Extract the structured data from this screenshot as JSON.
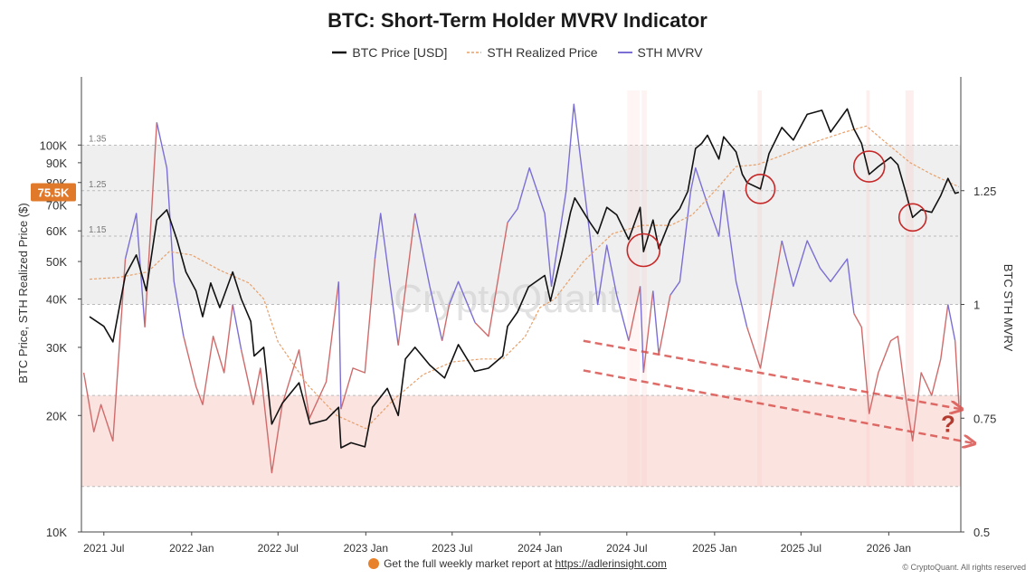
{
  "colors": {
    "btc_price": "#111111",
    "sth_realized": "#e8a06a",
    "mvrv_above": "#7b6fd6",
    "mvrv_below": "#cf6b6b",
    "upper_band": "#efefef",
    "lower_band": "#fbe3e0",
    "current_tag": "#e07a2a",
    "circle": "#c62828",
    "trend_arrow": "#d9534f"
  },
  "chart_data": {
    "type": "line",
    "title": "BTC: Short-Term Holder MVRV Indicator",
    "legend": [
      "BTC Price [USD]",
      "STH Realized Price",
      "STH MVRV"
    ],
    "legend_position": "top-center",
    "ylabel_left": "BTC Price, STH Realized Price ($)",
    "ylabel_right": "BTC STH MVRV",
    "y_left_scale": "log",
    "y_left_range": [
      10000,
      150000
    ],
    "y_left_ticks": [
      "10K",
      "20K",
      "30K",
      "40K",
      "50K",
      "60K",
      "70K",
      "80K",
      "90K",
      "100K"
    ],
    "y_left_tick_values": [
      10000,
      20000,
      30000,
      40000,
      50000,
      60000,
      70000,
      80000,
      90000,
      100000
    ],
    "y_right_range": [
      0.5,
      1.5
    ],
    "y_right_ticks": [
      "0.5",
      "0.75",
      "1",
      "1.25"
    ],
    "y_right_tick_values": [
      0.5,
      0.75,
      1,
      1.25
    ],
    "x_range": [
      "2021-05-15",
      "2026-06-01"
    ],
    "x_ticks": [
      "2021 Jul",
      "2022 Jan",
      "2022 Jul",
      "2023 Jan",
      "2023 Jul",
      "2024 Jan",
      "2024 Jul",
      "2025 Jan",
      "2025 Jul",
      "2026 Jan"
    ],
    "x_tick_dates": [
      "2021-07-01",
      "2022-01-01",
      "2022-07-01",
      "2023-01-01",
      "2023-07-01",
      "2024-01-01",
      "2024-07-01",
      "2025-01-01",
      "2025-07-01",
      "2026-01-01"
    ],
    "band_labels": [
      "1.35",
      "1.25",
      "1.15"
    ],
    "band_levels": [
      1.35,
      1.25,
      1.15
    ],
    "bands": [
      {
        "from": 1.0,
        "to": 1.35,
        "zone": "gray"
      },
      {
        "from": 0.6,
        "to": 0.8,
        "zone": "red"
      }
    ],
    "current_price_label": "75.5K",
    "current_price_value": 75500,
    "grid": false,
    "watermark": "CryptoQuant",
    "series": [
      {
        "name": "BTC Price [USD]",
        "axis": "left",
        "dates": [
          "2021-06-01",
          "2021-07-01",
          "2021-07-20",
          "2021-08-15",
          "2021-09-07",
          "2021-09-28",
          "2021-10-20",
          "2021-11-10",
          "2021-12-01",
          "2021-12-20",
          "2022-01-10",
          "2022-01-24",
          "2022-02-10",
          "2022-03-01",
          "2022-03-28",
          "2022-04-15",
          "2022-05-05",
          "2022-05-12",
          "2022-06-01",
          "2022-06-18",
          "2022-07-10",
          "2022-08-14",
          "2022-09-06",
          "2022-10-10",
          "2022-11-05",
          "2022-11-10",
          "2022-12-01",
          "2022-12-30",
          "2023-01-15",
          "2023-02-15",
          "2023-03-10",
          "2023-03-25",
          "2023-04-14",
          "2023-05-15",
          "2023-06-15",
          "2023-07-14",
          "2023-08-17",
          "2023-09-15",
          "2023-10-15",
          "2023-10-25",
          "2023-11-15",
          "2023-12-08",
          "2024-01-11",
          "2024-01-23",
          "2024-02-15",
          "2024-03-05",
          "2024-03-14",
          "2024-04-15",
          "2024-05-01",
          "2024-05-20",
          "2024-06-10",
          "2024-07-05",
          "2024-07-29",
          "2024-08-05",
          "2024-08-25",
          "2024-09-06",
          "2024-09-30",
          "2024-10-20",
          "2024-11-06",
          "2024-11-22",
          "2024-12-05",
          "2024-12-17",
          "2025-01-10",
          "2025-01-20",
          "2025-02-15",
          "2025-02-28",
          "2025-03-10",
          "2025-04-07",
          "2025-04-25",
          "2025-05-22",
          "2025-06-15",
          "2025-07-14",
          "2025-08-14",
          "2025-09-01",
          "2025-10-06",
          "2025-10-20",
          "2025-11-05",
          "2025-11-21",
          "2025-12-10",
          "2026-01-05",
          "2026-01-20",
          "2026-02-05",
          "2026-02-20",
          "2026-03-10",
          "2026-04-01",
          "2026-04-20",
          "2026-05-05",
          "2026-05-20",
          "2026-05-28"
        ],
        "values": [
          36000,
          34000,
          31000,
          46000,
          52000,
          42000,
          64000,
          68000,
          57000,
          47000,
          42000,
          36000,
          44000,
          38000,
          47000,
          40000,
          35000,
          28500,
          30000,
          19000,
          21500,
          24300,
          19000,
          19500,
          21000,
          16500,
          17000,
          16600,
          21000,
          23500,
          20000,
          28000,
          30000,
          27000,
          25000,
          30500,
          26000,
          26500,
          28500,
          34000,
          37000,
          43000,
          46000,
          39500,
          52000,
          67000,
          73000,
          63000,
          59000,
          69000,
          66000,
          57000,
          69000,
          53000,
          64000,
          54000,
          64000,
          68500,
          76000,
          98000,
          101000,
          106000,
          92000,
          105000,
          96000,
          84000,
          80000,
          77000,
          95000,
          111000,
          103000,
          120000,
          123000,
          108000,
          124000,
          110000,
          101000,
          84000,
          88000,
          93000,
          89000,
          76000,
          65000,
          68000,
          67000,
          74000,
          82000,
          75000,
          75500
        ]
      },
      {
        "name": "STH Realized Price",
        "axis": "left",
        "dates": [
          "2021-06-01",
          "2021-08-01",
          "2021-10-01",
          "2021-11-15",
          "2022-01-01",
          "2022-03-01",
          "2022-05-01",
          "2022-06-01",
          "2022-07-01",
          "2022-09-01",
          "2022-11-01",
          "2023-01-01",
          "2023-03-01",
          "2023-05-01",
          "2023-07-01",
          "2023-09-01",
          "2023-10-15",
          "2023-12-01",
          "2024-01-01",
          "2024-02-01",
          "2024-04-01",
          "2024-06-01",
          "2024-08-01",
          "2024-10-01",
          "2024-11-15",
          "2025-01-01",
          "2025-02-15",
          "2025-04-01",
          "2025-06-01",
          "2025-08-01",
          "2025-10-01",
          "2025-11-15",
          "2026-01-01",
          "2026-02-15",
          "2026-04-01",
          "2026-05-28"
        ],
        "values": [
          45000,
          45500,
          47000,
          53000,
          52000,
          47500,
          44000,
          40000,
          31000,
          24000,
          20000,
          18500,
          22000,
          25500,
          27500,
          28000,
          28000,
          32000,
          38000,
          40000,
          50000,
          59000,
          62000,
          62000,
          66000,
          76000,
          88000,
          89000,
          95000,
          102000,
          108000,
          112000,
          100000,
          90000,
          84000,
          78000
        ]
      },
      {
        "name": "STH MVRV",
        "axis": "right",
        "dates": [
          "2021-05-20",
          "2021-06-10",
          "2021-06-25",
          "2021-07-20",
          "2021-08-15",
          "2021-09-07",
          "2021-09-25",
          "2021-10-20",
          "2021-11-10",
          "2021-11-25",
          "2021-12-15",
          "2022-01-10",
          "2022-01-24",
          "2022-02-15",
          "2022-03-10",
          "2022-03-28",
          "2022-04-15",
          "2022-05-10",
          "2022-05-25",
          "2022-06-18",
          "2022-07-10",
          "2022-08-14",
          "2022-09-05",
          "2022-10-10",
          "2022-11-05",
          "2022-11-10",
          "2022-12-05",
          "2022-12-30",
          "2023-01-20",
          "2023-02-01",
          "2023-02-20",
          "2023-03-10",
          "2023-04-14",
          "2023-05-15",
          "2023-06-10",
          "2023-06-25",
          "2023-07-14",
          "2023-08-18",
          "2023-09-15",
          "2023-10-25",
          "2023-11-15",
          "2023-12-10",
          "2024-01-11",
          "2024-01-25",
          "2024-02-25",
          "2024-03-12",
          "2024-04-15",
          "2024-05-01",
          "2024-05-20",
          "2024-06-10",
          "2024-07-05",
          "2024-07-29",
          "2024-08-05",
          "2024-08-25",
          "2024-09-06",
          "2024-09-30",
          "2024-10-20",
          "2024-11-12",
          "2024-11-22",
          "2024-12-17",
          "2025-01-10",
          "2025-01-20",
          "2025-02-15",
          "2025-03-10",
          "2025-04-07",
          "2025-04-25",
          "2025-05-22",
          "2025-06-15",
          "2025-07-14",
          "2025-08-10",
          "2025-09-01",
          "2025-10-06",
          "2025-10-20",
          "2025-11-05",
          "2025-11-21",
          "2025-12-10",
          "2026-01-05",
          "2026-01-20",
          "2026-02-05",
          "2026-02-20",
          "2026-03-10",
          "2026-04-01",
          "2026-04-20",
          "2026-05-05",
          "2026-05-20",
          "2026-05-28"
        ],
        "values": [
          0.85,
          0.72,
          0.78,
          0.7,
          1.1,
          1.2,
          0.95,
          1.4,
          1.3,
          1.05,
          0.93,
          0.82,
          0.78,
          0.93,
          0.85,
          1.0,
          0.9,
          0.78,
          0.86,
          0.63,
          0.78,
          0.9,
          0.75,
          0.83,
          1.05,
          0.77,
          0.86,
          0.85,
          1.1,
          1.2,
          1.05,
          0.91,
          1.2,
          1.04,
          0.92,
          1.0,
          1.05,
          0.96,
          0.93,
          1.18,
          1.21,
          1.3,
          1.2,
          1.04,
          1.25,
          1.44,
          1.15,
          1.0,
          1.13,
          1.02,
          0.92,
          1.04,
          0.85,
          1.03,
          0.89,
          1.02,
          1.05,
          1.25,
          1.3,
          1.22,
          1.15,
          1.25,
          1.05,
          0.95,
          0.86,
          0.97,
          1.14,
          1.04,
          1.14,
          1.08,
          1.05,
          1.1,
          0.98,
          0.95,
          0.76,
          0.85,
          0.92,
          0.93,
          0.8,
          0.7,
          0.85,
          0.8,
          0.88,
          1.0,
          0.92,
          0.78
        ]
      }
    ]
  },
  "footer": {
    "text": "Get the full weekly market report at",
    "link_text": "https://adlerinsight.com",
    "copyright": "© CryptoQuant. All rights reserved"
  }
}
